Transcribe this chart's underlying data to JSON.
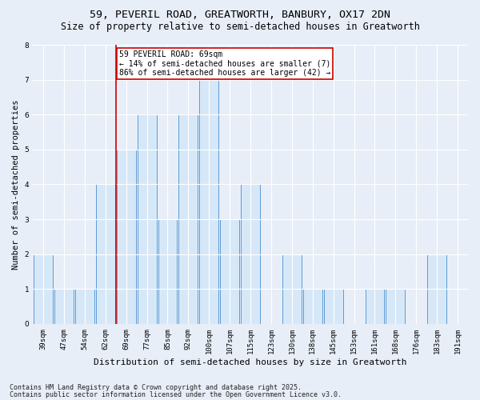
{
  "title1": "59, PEVERIL ROAD, GREATWORTH, BANBURY, OX17 2DN",
  "title2": "Size of property relative to semi-detached houses in Greatworth",
  "xlabel": "Distribution of semi-detached houses by size in Greatworth",
  "ylabel": "Number of semi-detached properties",
  "categories": [
    "39sqm",
    "47sqm",
    "54sqm",
    "62sqm",
    "69sqm",
    "77sqm",
    "85sqm",
    "92sqm",
    "100sqm",
    "107sqm",
    "115sqm",
    "123sqm",
    "130sqm",
    "138sqm",
    "145sqm",
    "153sqm",
    "161sqm",
    "168sqm",
    "176sqm",
    "183sqm",
    "191sqm"
  ],
  "values": [
    2,
    1,
    1,
    4,
    5,
    6,
    3,
    6,
    7,
    3,
    4,
    0,
    2,
    1,
    1,
    0,
    1,
    1,
    0,
    2,
    0
  ],
  "bar_color": "#d6e8f7",
  "bar_edge_color": "#5b9bd5",
  "vline_color": "#cc0000",
  "vline_index": 4,
  "annotation_text": "59 PEVERIL ROAD: 69sqm\n← 14% of semi-detached houses are smaller (7)\n86% of semi-detached houses are larger (42) →",
  "annotation_box_facecolor": "#ffffff",
  "annotation_box_edgecolor": "#cc0000",
  "ylim": [
    0,
    8
  ],
  "yticks": [
    0,
    1,
    2,
    3,
    4,
    5,
    6,
    7,
    8
  ],
  "background_color": "#e8eef8",
  "plot_bg_color": "#e8eef8",
  "grid_color": "#ffffff",
  "footer1": "Contains HM Land Registry data © Crown copyright and database right 2025.",
  "footer2": "Contains public sector information licensed under the Open Government Licence v3.0.",
  "title1_fontsize": 9.5,
  "title2_fontsize": 8.5,
  "xlabel_fontsize": 8,
  "ylabel_fontsize": 7.5,
  "tick_fontsize": 6.5,
  "footer_fontsize": 6,
  "annotation_fontsize": 7
}
